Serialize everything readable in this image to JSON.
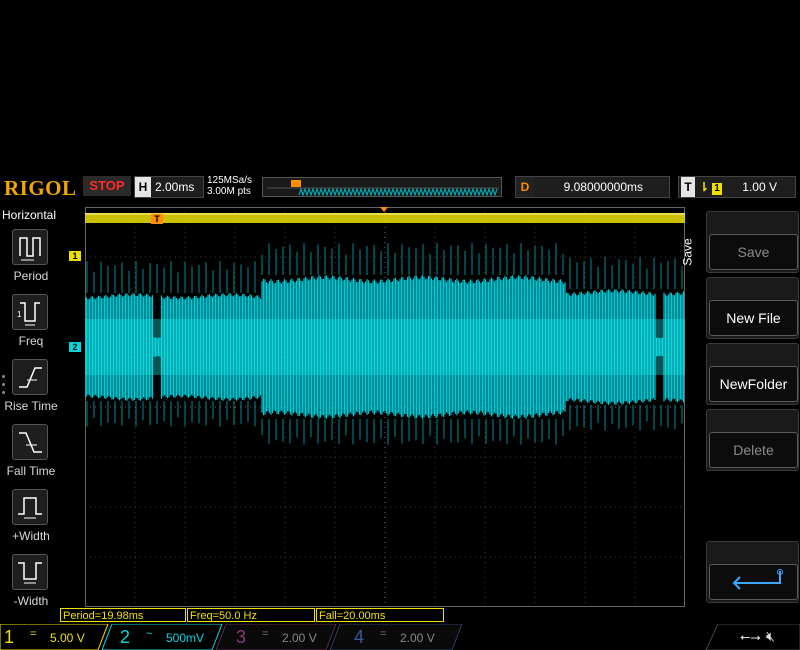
{
  "brand": "RIGOL",
  "run_state": "STOP",
  "horizontal": {
    "label": "H",
    "timebase": "2.00ms",
    "sample_rate": "125MSa/s",
    "memory": "3.00M pts"
  },
  "delay": {
    "label": "D",
    "value": "9.08000000ms"
  },
  "trigger": {
    "label": "T",
    "edge_icon": "rising-edge-icon",
    "source": "1",
    "level": "1.00 V"
  },
  "left_menu": {
    "title": "Horizontal",
    "items": [
      {
        "label": "Period",
        "icon": "period-icon"
      },
      {
        "label": "Freq",
        "icon": "freq-icon"
      },
      {
        "label": "Rise Time",
        "icon": "rise-time-icon"
      },
      {
        "label": "Fall Time",
        "icon": "fall-time-icon"
      },
      {
        "label": "+Width",
        "icon": "pos-width-icon"
      },
      {
        "label": "-Width",
        "icon": "neg-width-icon"
      }
    ]
  },
  "right_menu": {
    "tab": "Save",
    "buttons": [
      {
        "label": "Save",
        "enabled": false
      },
      {
        "label": "New File",
        "enabled": true
      },
      {
        "label": "NewFolder",
        "enabled": true
      },
      {
        "label": "Delete",
        "enabled": false
      }
    ],
    "back_icon": "return-arrow-icon"
  },
  "markers": {
    "trigger_pos": "T",
    "ch1": "1",
    "ch2": "2"
  },
  "measurements": [
    {
      "text": "Period=19.98ms"
    },
    {
      "text": "Freq=50.0 Hz"
    },
    {
      "text": "Fall=20.00ms"
    }
  ],
  "channels": [
    {
      "num": "1",
      "coupling": "=",
      "scale": "5.00 V",
      "color": "#f0e000",
      "active": true
    },
    {
      "num": "2",
      "coupling": "~",
      "scale": "500mV",
      "color": "#00d8e0",
      "active": true
    },
    {
      "num": "3",
      "coupling": "=",
      "scale": "2.00 V",
      "color": "#c040a0",
      "active": false
    },
    {
      "num": "4",
      "coupling": "=",
      "scale": "2.00 V",
      "color": "#3070e0",
      "active": false
    }
  ],
  "status_icons": [
    "usb-icon",
    "speaker-mute-icon"
  ],
  "colors": {
    "ch1": "#f0e000",
    "ch2": "#00d8e0",
    "accent": "#f0a800",
    "stop": "#ff2a2a"
  }
}
